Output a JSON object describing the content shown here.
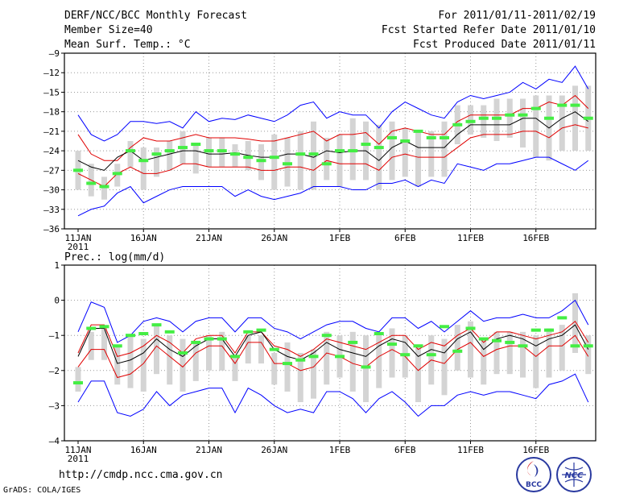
{
  "header": {
    "title": "DERF/NCC/BCC Monthly Forecast",
    "member": "Member Size=40",
    "variable": "Mean Surf. Temp.: °C",
    "period": "For 2011/01/11-2011/02/19",
    "started": "Fcst Started Refer Date 2011/01/10",
    "produced": "Fcst Produced Date 2011/01/11"
  },
  "footer": {
    "url": "http://cmdp.ncc.cma.gov.cn",
    "credit": "GrADS: COLA/IGES"
  },
  "logos": {
    "bcc": "BCC",
    "ncc": "NCC"
  },
  "colors": {
    "envelope": "#0000ff",
    "spread": "#e00000",
    "mean": "#000000",
    "box": "#d4d4d4",
    "median": "#44ee44"
  },
  "chart_data": [
    {
      "type": "line",
      "title": "Mean Surf. Temp.: °C",
      "ylim": [
        -36,
        -9
      ],
      "yticks": [
        -9,
        -12,
        -15,
        -18,
        -21,
        -24,
        -27,
        -30,
        -33,
        -36
      ],
      "xticks": [
        "11JAN",
        "16JAN",
        "21JAN",
        "26JAN",
        "1FEB",
        "6FEB",
        "11FEB",
        "16FEB"
      ],
      "year_label": "2011",
      "days": 40,
      "series": [
        {
          "name": "max",
          "values": [
            -18.5,
            -21.5,
            -22.5,
            -21.5,
            -19.5,
            -19.5,
            -19.8,
            -19.5,
            -20.5,
            -18,
            -19.5,
            -19,
            -19.2,
            -18.5,
            -19,
            -19.5,
            -18.5,
            -17,
            -16.5,
            -19,
            -18,
            -18.5,
            -18.5,
            -20.5,
            -18,
            -16.5,
            -17.5,
            -18.5,
            -19,
            -16.5,
            -15.5,
            -16,
            -15.5,
            -15,
            -13.5,
            -14.5,
            -13,
            -13.5,
            -11,
            -14.5
          ]
        },
        {
          "name": "upper",
          "values": [
            -21.5,
            -24.5,
            -25.5,
            -25.5,
            -23.5,
            -22,
            -22.5,
            -22.5,
            -22,
            -21.5,
            -22,
            -22,
            -22,
            -22.2,
            -22.5,
            -22.5,
            -22,
            -21.5,
            -21,
            -22.5,
            -21.5,
            -21.5,
            -21.2,
            -23,
            -21,
            -20.5,
            -21,
            -21.5,
            -21.5,
            -19.5,
            -18.5,
            -18.5,
            -18.5,
            -18.5,
            -17.5,
            -17.5,
            -16.5,
            -17,
            -15.5,
            -17.5
          ]
        },
        {
          "name": "mean",
          "values": [
            -25.5,
            -26.5,
            -27,
            -25,
            -24,
            -25.5,
            -25,
            -24.5,
            -24,
            -24,
            -24.5,
            -24.5,
            -24.3,
            -24.7,
            -25,
            -25,
            -24.5,
            -24.5,
            -25,
            -24,
            -24.3,
            -24,
            -24,
            -25.5,
            -23.5,
            -22.5,
            -23.5,
            -23.5,
            -23.5,
            -21.5,
            -20,
            -20,
            -20,
            -20,
            -19,
            -19,
            -20.5,
            -19,
            -18,
            -19.5
          ]
        },
        {
          "name": "lower",
          "values": [
            -27.5,
            -28.5,
            -29.5,
            -27.5,
            -26.5,
            -27.5,
            -27.5,
            -27,
            -26,
            -26,
            -26.5,
            -26.5,
            -26.5,
            -26.5,
            -27,
            -27,
            -26.5,
            -26.5,
            -27,
            -25.5,
            -26,
            -26,
            -26,
            -27,
            -25,
            -24.5,
            -25,
            -25,
            -25,
            -23.5,
            -22,
            -21.5,
            -21.5,
            -21.5,
            -21,
            -21,
            -22,
            -20.5,
            -20,
            -20.5
          ]
        },
        {
          "name": "min",
          "values": [
            -34,
            -33,
            -32.5,
            -30.5,
            -29.5,
            -32,
            -31,
            -30,
            -29.5,
            -29.5,
            -29.5,
            -29.5,
            -31,
            -30,
            -31,
            -31.5,
            -31,
            -30.5,
            -29.5,
            -29.5,
            -29.5,
            -30,
            -30,
            -29,
            -29,
            -28.5,
            -29.5,
            -28.5,
            -29,
            -26,
            -26.5,
            -27,
            -26,
            -26,
            -25.5,
            -25,
            -25,
            -26,
            -27,
            -25.5
          ]
        },
        {
          "name": "box_high",
          "values": [
            -24,
            -26,
            -28,
            -26,
            -22.5,
            -23.5,
            -23.5,
            -22.5,
            -21,
            -23,
            -22,
            -22,
            -23,
            -22.5,
            -23,
            -21.5,
            -22,
            -21,
            -19.5,
            -22,
            -21.5,
            -19,
            -19.5,
            -20,
            -19.5,
            -20.5,
            -21,
            -21,
            -19.5,
            -17,
            -17,
            -17,
            -16,
            -16,
            -16,
            -15.5,
            -15.5,
            -15.5,
            -14,
            -14
          ]
        },
        {
          "name": "box_low",
          "values": [
            -30,
            -31,
            -31.5,
            -29.5,
            -26.5,
            -30,
            -28,
            -27,
            -26,
            -27.5,
            -26.5,
            -26.5,
            -26.5,
            -27,
            -28.5,
            -30,
            -29.5,
            -30,
            -30,
            -28.5,
            -29.5,
            -28.5,
            -28.5,
            -30,
            -28.5,
            -28,
            -29.5,
            -28,
            -28,
            -23,
            -21.5,
            -22,
            -22.5,
            -22,
            -23.5,
            -25,
            -25.5,
            -24,
            -24,
            -24
          ]
        },
        {
          "name": "median",
          "values": [
            -27,
            -29,
            -29.5,
            -27.5,
            -24,
            -25.5,
            -24.5,
            -24,
            -23.5,
            -23,
            -24,
            -24,
            -24.5,
            -25,
            -25.5,
            -25,
            -26,
            -24.5,
            -24.5,
            -26,
            -24,
            -24,
            -23,
            -23.5,
            -22,
            -22.5,
            -21,
            -22,
            -22,
            -20,
            -19.5,
            -19,
            -19,
            -18.5,
            -18.5,
            -17.5,
            -19,
            -17,
            -17,
            -19
          ]
        }
      ]
    },
    {
      "type": "line",
      "title": "Prec.: log(mm/d)",
      "ylim": [
        -4,
        1
      ],
      "yticks": [
        1,
        0,
        -1,
        -2,
        -3,
        -4
      ],
      "xticks": [
        "11JAN",
        "16JAN",
        "21JAN",
        "26JAN",
        "1FEB",
        "6FEB",
        "11FEB",
        "16FEB"
      ],
      "year_label": "2011",
      "days": 40,
      "series": [
        {
          "name": "max",
          "values": [
            -0.9,
            -0.05,
            -0.2,
            -1.2,
            -1,
            -0.6,
            -0.5,
            -0.6,
            -0.9,
            -0.6,
            -0.5,
            -0.5,
            -0.9,
            -0.5,
            -0.5,
            -0.8,
            -0.9,
            -1.1,
            -0.9,
            -0.7,
            -0.6,
            -0.6,
            -0.8,
            -0.9,
            -0.5,
            -0.5,
            -0.8,
            -0.6,
            -0.9,
            -0.6,
            -0.3,
            -0.6,
            -0.5,
            -0.5,
            -0.4,
            -0.5,
            -0.5,
            -0.3,
            0,
            -0.7
          ]
        },
        {
          "name": "upper",
          "values": [
            -1.5,
            -0.7,
            -0.7,
            -1.6,
            -1.5,
            -1.3,
            -1,
            -1.2,
            -1.5,
            -1.1,
            -1,
            -1,
            -1.5,
            -0.9,
            -0.9,
            -1.3,
            -1.4,
            -1.6,
            -1.4,
            -1.1,
            -1.2,
            -1.3,
            -1.4,
            -1.2,
            -1,
            -1,
            -1.4,
            -1.2,
            -1.3,
            -1,
            -0.8,
            -1.2,
            -0.9,
            -0.9,
            -1,
            -1.1,
            -1,
            -0.9,
            -0.6,
            -1.2
          ]
        },
        {
          "name": "mean",
          "values": [
            -1.6,
            -0.8,
            -0.8,
            -1.8,
            -1.7,
            -1.5,
            -1.1,
            -1.4,
            -1.6,
            -1.3,
            -1.1,
            -1.1,
            -1.6,
            -1,
            -0.9,
            -1.4,
            -1.6,
            -1.7,
            -1.5,
            -1.2,
            -1.4,
            -1.5,
            -1.6,
            -1.3,
            -1.1,
            -1.2,
            -1.6,
            -1.4,
            -1.5,
            -1.1,
            -0.9,
            -1.4,
            -1.1,
            -1,
            -1.1,
            -1.3,
            -1.1,
            -1,
            -0.7,
            -1.4
          ]
        },
        {
          "name": "lower",
          "values": [
            -1.9,
            -1.4,
            -1.4,
            -2.2,
            -2.1,
            -1.8,
            -1.3,
            -1.6,
            -1.9,
            -1.5,
            -1.3,
            -1.3,
            -1.8,
            -1.2,
            -1.2,
            -1.8,
            -1.8,
            -2,
            -1.9,
            -1.5,
            -1.6,
            -1.8,
            -1.9,
            -1.6,
            -1.4,
            -1.6,
            -2,
            -1.7,
            -1.8,
            -1.4,
            -1.2,
            -1.6,
            -1.4,
            -1.3,
            -1.3,
            -1.6,
            -1.3,
            -1.3,
            -1,
            -1.6
          ]
        },
        {
          "name": "min",
          "values": [
            -2.9,
            -2.3,
            -2.3,
            -3.2,
            -3.3,
            -3.1,
            -2.6,
            -3,
            -2.7,
            -2.6,
            -2.5,
            -2.5,
            -3.2,
            -2.5,
            -2.7,
            -3,
            -3.2,
            -3.1,
            -3.2,
            -2.6,
            -2.6,
            -2.8,
            -3.2,
            -2.8,
            -2.6,
            -2.9,
            -3.3,
            -3,
            -3,
            -2.7,
            -2.6,
            -2.7,
            -2.6,
            -2.6,
            -2.7,
            -2.8,
            -2.4,
            -2.3,
            -2.1,
            -2.9
          ]
        },
        {
          "name": "box_high",
          "values": [
            -1.9,
            -0.9,
            -0.8,
            -1.3,
            -1,
            -1.1,
            -0.7,
            -1,
            -1.1,
            -1.2,
            -1,
            -0.9,
            -1.6,
            -1,
            -1,
            -1.5,
            -1.2,
            -1.5,
            -1.4,
            -0.9,
            -1,
            -0.9,
            -1,
            -0.9,
            -0.8,
            -1,
            -1.3,
            -1,
            -1.1,
            -0.7,
            -0.6,
            -1.1,
            -0.9,
            -0.9,
            -0.9,
            -1,
            -0.8,
            -0.7,
            0.2,
            -1
          ]
        },
        {
          "name": "box_low",
          "values": [
            -2.6,
            -1.7,
            -1.7,
            -2.4,
            -2.5,
            -2.6,
            -2.1,
            -2.4,
            -2.6,
            -2.3,
            -2,
            -2,
            -2.3,
            -1.8,
            -1.8,
            -2.4,
            -2.6,
            -2.9,
            -2.8,
            -2.4,
            -2.2,
            -2.6,
            -2.9,
            -2.5,
            -2.2,
            -2.2,
            -2.9,
            -2.4,
            -2.7,
            -2,
            -2.2,
            -2.4,
            -2.1,
            -2.1,
            -2.2,
            -2.5,
            -2.2,
            -2,
            -1.5,
            -2.1
          ]
        },
        {
          "name": "median",
          "values": [
            -2.35,
            -0.8,
            -0.75,
            -1.3,
            -1,
            -0.95,
            -0.7,
            -0.9,
            -1.5,
            -1.2,
            -1.1,
            -1.1,
            -1.6,
            -0.9,
            -0.85,
            -1.4,
            -1.8,
            -1.7,
            -1.6,
            -1,
            -1.6,
            -1.2,
            -1.9,
            -0.95,
            -1.25,
            -1.55,
            -1.3,
            -1.55,
            -0.75,
            -1.45,
            -0.8,
            -1.1,
            -1.15,
            -1.2,
            -1.3,
            -0.85,
            -0.85,
            -0.5,
            -1.3,
            -1.3
          ]
        }
      ]
    }
  ]
}
